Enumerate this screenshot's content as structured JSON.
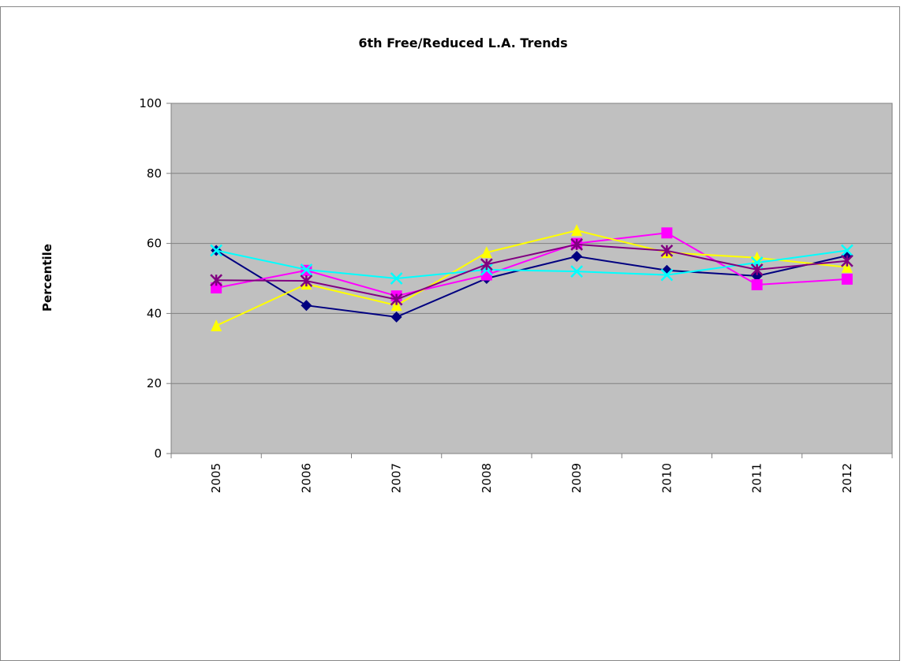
{
  "chart_data": {
    "type": "line",
    "title": "6th Free/Reduced L.A. Trends",
    "y_label": "Percentile",
    "categories": [
      "2005",
      "2006",
      "2007",
      "2008",
      "2009",
      "2010",
      "2011",
      "2012"
    ],
    "series": [
      {
        "color": "#000080",
        "marker": "diamond",
        "values": [
          58,
          42.3,
          39,
          50,
          56.3,
          52.3,
          50.7,
          56.5
        ]
      },
      {
        "color": "#ff00ff",
        "marker": "square",
        "values": [
          47.3,
          52.3,
          45,
          51,
          60,
          63,
          48.2,
          49.8
        ]
      },
      {
        "color": "#ffff00",
        "marker": "triangle",
        "values": [
          36.5,
          48.4,
          42.3,
          57.4,
          63.7,
          57.4,
          55.9,
          53.2
        ]
      },
      {
        "color": "#00ffff",
        "marker": "x",
        "values": [
          58,
          52.5,
          50,
          52.5,
          52,
          51,
          54.5,
          58
        ]
      },
      {
        "color": "#800080",
        "marker": "star",
        "values": [
          49.5,
          49.3,
          44,
          54,
          59.7,
          57.9,
          52.5,
          55
        ]
      }
    ],
    "ylim": [
      0,
      100
    ],
    "yticks": [
      0,
      20,
      40,
      60,
      80,
      100
    ],
    "grid": true,
    "plot_background": "#c0c0c0"
  }
}
